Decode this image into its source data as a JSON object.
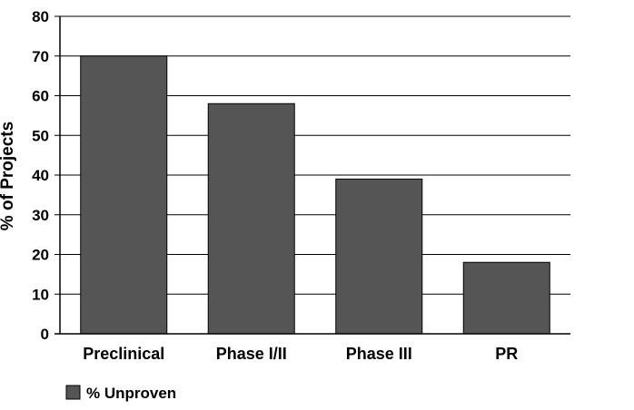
{
  "chart_data": {
    "type": "bar",
    "categories": [
      "Preclinical",
      "Phase I/II",
      "Phase III",
      "PR"
    ],
    "series": [
      {
        "name": "% Unproven",
        "values": [
          70,
          58,
          39,
          18
        ],
        "color": "#555555"
      }
    ],
    "xlabel": "",
    "ylabel": "% of Projects",
    "ylim": [
      0,
      80
    ],
    "yticks": [
      "0",
      "10",
      "20",
      "30",
      "40",
      "50",
      "60",
      "70",
      "80"
    ],
    "grid": true,
    "legend": "bottom-left"
  }
}
